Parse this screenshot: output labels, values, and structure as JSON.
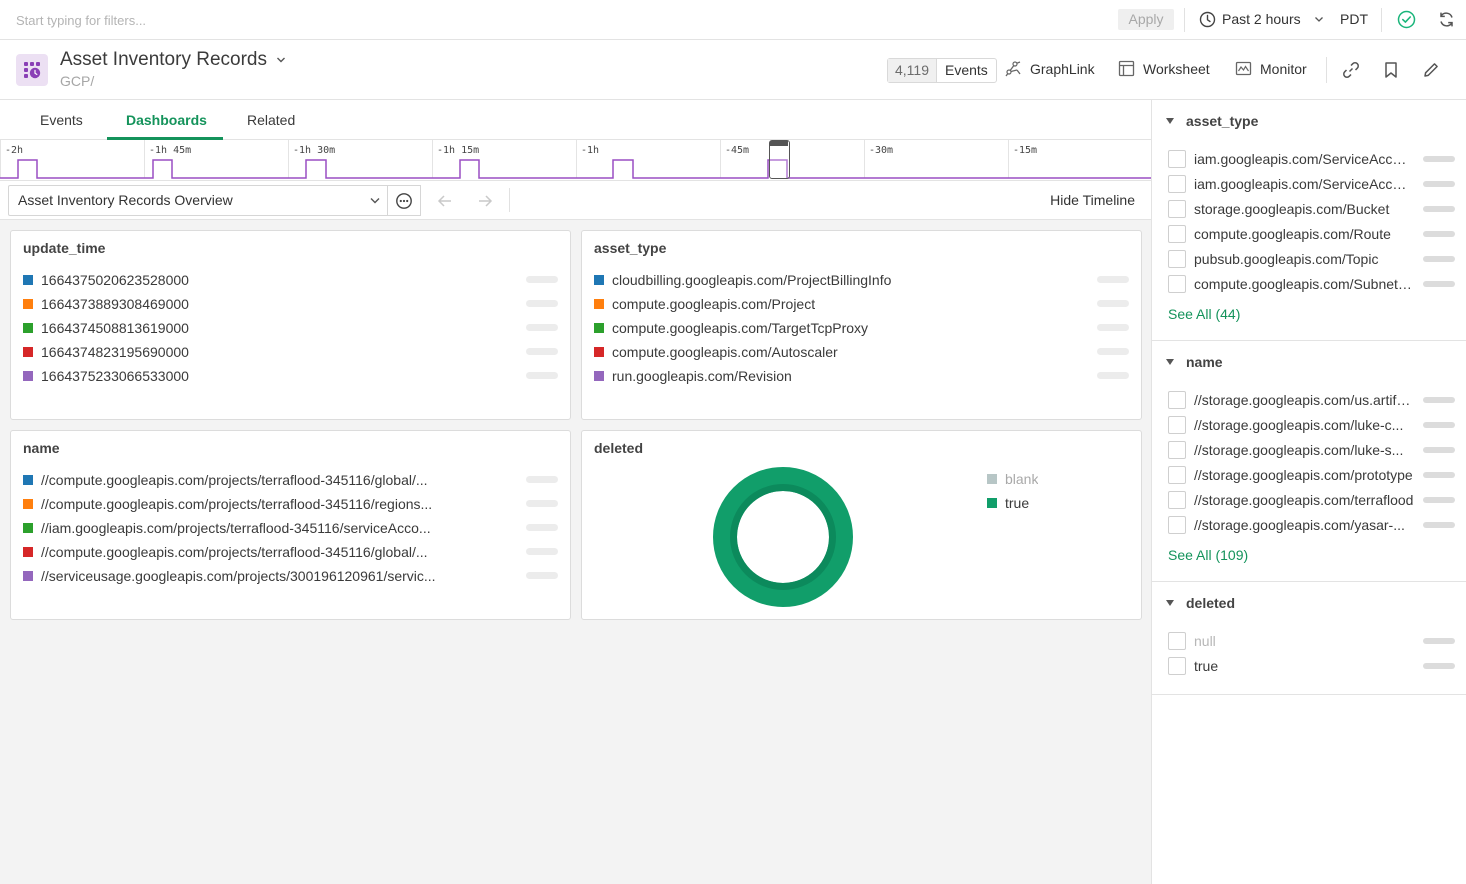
{
  "filter_bar": {
    "placeholder": "Start typing for filters...",
    "apply_label": "Apply",
    "time_range": "Past 2 hours",
    "timezone": "PDT"
  },
  "header": {
    "title": "Asset Inventory Records",
    "subtitle": "GCP/",
    "event_count": "4,119",
    "events_label": "Events",
    "graphlink_label": "GraphLink",
    "worksheet_label": "Worksheet",
    "monitor_label": "Monitor"
  },
  "tabs": [
    {
      "label": "Events",
      "active": false
    },
    {
      "label": "Dashboards",
      "active": true
    },
    {
      "label": "Related",
      "active": false
    }
  ],
  "timeline": {
    "labels": [
      "-2h",
      "-1h 45m",
      "-1h 30m",
      "-1h 15m",
      "-1h",
      "-45m",
      "-30m",
      "-15m"
    ]
  },
  "dashboard_toolbar": {
    "selected_dashboard": "Asset Inventory Records Overview",
    "hide_timeline_label": "Hide Timeline"
  },
  "panels": {
    "update_time": {
      "title": "update_time",
      "items": [
        {
          "label": "1664375020623528000",
          "color": "#1f77b4"
        },
        {
          "label": "1664373889308469000",
          "color": "#ff7f0e"
        },
        {
          "label": "1664374508813619000",
          "color": "#2ca02c"
        },
        {
          "label": "1664374823195690000",
          "color": "#d62728"
        },
        {
          "label": "1664375233066533000",
          "color": "#9467bd"
        }
      ]
    },
    "asset_type": {
      "title": "asset_type",
      "items": [
        {
          "label": "cloudbilling.googleapis.com/ProjectBillingInfo",
          "color": "#1f77b4"
        },
        {
          "label": "compute.googleapis.com/Project",
          "color": "#ff7f0e"
        },
        {
          "label": "compute.googleapis.com/TargetTcpProxy",
          "color": "#2ca02c"
        },
        {
          "label": "compute.googleapis.com/Autoscaler",
          "color": "#d62728"
        },
        {
          "label": "run.googleapis.com/Revision",
          "color": "#9467bd"
        }
      ]
    },
    "name": {
      "title": "name",
      "items": [
        {
          "label": "//compute.googleapis.com/projects/terraflood-345116/global/...",
          "color": "#1f77b4"
        },
        {
          "label": "//compute.googleapis.com/projects/terraflood-345116/regions...",
          "color": "#ff7f0e"
        },
        {
          "label": "//iam.googleapis.com/projects/terraflood-345116/serviceAcco...",
          "color": "#2ca02c"
        },
        {
          "label": "//compute.googleapis.com/projects/terraflood-345116/global/...",
          "color": "#d62728"
        },
        {
          "label": "//serviceusage.googleapis.com/projects/300196120961/servic...",
          "color": "#9467bd"
        }
      ]
    },
    "deleted": {
      "title": "deleted",
      "legend": [
        {
          "label": "blank",
          "color": "#b7c6c6",
          "muted": true
        },
        {
          "label": "true",
          "color": "#119e6a",
          "muted": false
        }
      ],
      "donut": {
        "outer_color": "#119e6a",
        "inner_ring_color": "#0c8a5c"
      }
    }
  },
  "sidebar": {
    "asset_type": {
      "title": "asset_type",
      "items": [
        {
          "label": "iam.googleapis.com/ServiceAccount",
          "fraction": 0.08
        },
        {
          "label": "iam.googleapis.com/ServiceAccountKey",
          "fraction": 0.08
        },
        {
          "label": "storage.googleapis.com/Bucket",
          "fraction": 0.06
        },
        {
          "label": "compute.googleapis.com/Route",
          "fraction": 0.05
        },
        {
          "label": "pubsub.googleapis.com/Topic",
          "fraction": 0.05
        },
        {
          "label": "compute.googleapis.com/Subnetwork",
          "fraction": 0.05
        }
      ],
      "see_all": "See All (44)"
    },
    "name": {
      "title": "name",
      "items": [
        {
          "label": "//storage.googleapis.com/us.artifacts",
          "fraction": 0.0
        },
        {
          "label": "//storage.googleapis.com/luke-c...",
          "fraction": 0.0
        },
        {
          "label": "//storage.googleapis.com/luke-s...",
          "fraction": 0.0
        },
        {
          "label": "//storage.googleapis.com/prototype",
          "fraction": 0.0
        },
        {
          "label": "//storage.googleapis.com/terraflood",
          "fraction": 0.0
        },
        {
          "label": "//storage.googleapis.com/yasar-...",
          "fraction": 0.0
        }
      ],
      "see_all": "See All (109)"
    },
    "deleted": {
      "title": "deleted",
      "items": [
        {
          "label": "null",
          "fraction": 1.0,
          "muted": true
        },
        {
          "label": "true",
          "fraction": 0.0,
          "muted": false
        }
      ]
    }
  },
  "colors": {
    "accent": "#14935b",
    "timeline_line": "#9a4fc4"
  }
}
